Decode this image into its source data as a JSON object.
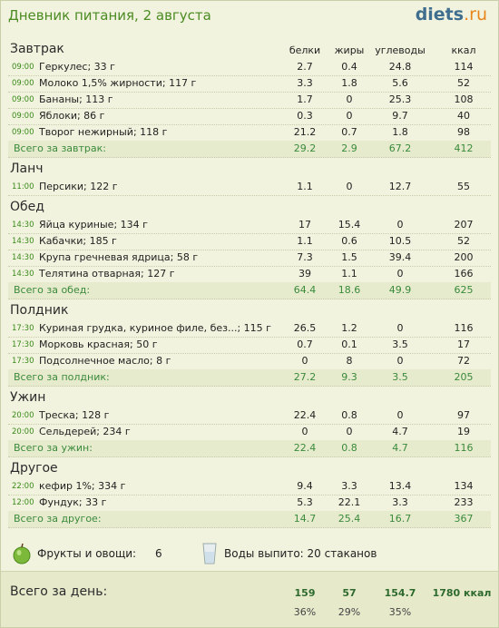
{
  "header": {
    "title": "Дневник питания, 2 августа",
    "logo_a": "diets",
    "logo_b": ".ru"
  },
  "columns": [
    "белки",
    "жиры",
    "углеводы",
    "ккал"
  ],
  "sections": [
    {
      "name": "Завтрак",
      "rows": [
        {
          "time": "09:00",
          "food": "Геркулес; 33 г",
          "values": [
            2.7,
            0.4,
            24.8,
            114
          ]
        },
        {
          "time": "09:00",
          "food": "Молоко 1,5% жирности; 117 г",
          "values": [
            3.3,
            1.8,
            5.6,
            52
          ]
        },
        {
          "time": "09:00",
          "food": "Бананы; 113 г",
          "values": [
            1.7,
            0,
            25.3,
            108
          ]
        },
        {
          "time": "09:00",
          "food": "Яблоки; 86 г",
          "values": [
            0.3,
            0,
            9.7,
            40
          ]
        },
        {
          "time": "09:00",
          "food": "Творог нежирный; 118 г",
          "values": [
            21.2,
            0.7,
            1.8,
            98
          ]
        }
      ],
      "total": {
        "label": "Всего за завтрак:",
        "values": [
          29.2,
          2.9,
          67.2,
          412
        ]
      }
    },
    {
      "name": "Ланч",
      "rows": [
        {
          "time": "11:00",
          "food": "Персики; 122 г",
          "values": [
            1.1,
            0,
            12.7,
            55
          ]
        }
      ]
    },
    {
      "name": "Обед",
      "rows": [
        {
          "time": "14:30",
          "food": "Яйца куриные; 134 г",
          "values": [
            17,
            15.4,
            0,
            207
          ]
        },
        {
          "time": "14:30",
          "food": "Кабачки; 185 г",
          "values": [
            1.1,
            0.6,
            10.5,
            52
          ]
        },
        {
          "time": "14:30",
          "food": "Крупа гречневая ядрица; 58 г",
          "values": [
            7.3,
            1.5,
            39.4,
            200
          ]
        },
        {
          "time": "14:30",
          "food": "Телятина отварная; 127 г",
          "values": [
            39,
            1.1,
            0,
            166
          ]
        }
      ],
      "total": {
        "label": "Всего за обед:",
        "values": [
          64.4,
          18.6,
          49.9,
          625
        ]
      }
    },
    {
      "name": "Полдник",
      "rows": [
        {
          "time": "17:30",
          "food": "Куриная грудка, куриное филе, без...; 115 г",
          "values": [
            26.5,
            1.2,
            0,
            116
          ]
        },
        {
          "time": "17:30",
          "food": "Морковь красная; 50 г",
          "values": [
            0.7,
            0.1,
            3.5,
            17
          ]
        },
        {
          "time": "17:30",
          "food": "Подсолнечное масло; 8 г",
          "values": [
            0,
            8,
            0,
            72
          ]
        }
      ],
      "total": {
        "label": "Всего за полдник:",
        "values": [
          27.2,
          9.3,
          3.5,
          205
        ]
      }
    },
    {
      "name": "Ужин",
      "rows": [
        {
          "time": "20:00",
          "food": "Треска; 128 г",
          "values": [
            22.4,
            0.8,
            0,
            97
          ]
        },
        {
          "time": "20:00",
          "food": "Сельдерей; 234 г",
          "values": [
            0,
            0,
            4.7,
            19
          ]
        }
      ],
      "total": {
        "label": "Всего за ужин:",
        "values": [
          22.4,
          0.8,
          4.7,
          116
        ]
      }
    },
    {
      "name": "Другое",
      "rows": [
        {
          "time": "22:00",
          "food": "кефир 1%; 334 г",
          "values": [
            9.4,
            3.3,
            13.4,
            134
          ]
        },
        {
          "time": "12:00",
          "food": "Фундук; 33 г",
          "values": [
            5.3,
            22.1,
            3.3,
            233
          ]
        }
      ],
      "total": {
        "label": "Всего за другое:",
        "values": [
          14.7,
          25.4,
          16.7,
          367
        ]
      }
    }
  ],
  "summary": {
    "fruits_label": "Фрукты и овощи:",
    "fruits_value": 6,
    "water": "Воды выпито: 20 стаканов"
  },
  "day_total": {
    "label": "Всего за день:",
    "values": [
      159,
      57,
      154.7
    ],
    "kcal": "1780 ккал",
    "percents": [
      "36%",
      "29%",
      "35%"
    ]
  }
}
